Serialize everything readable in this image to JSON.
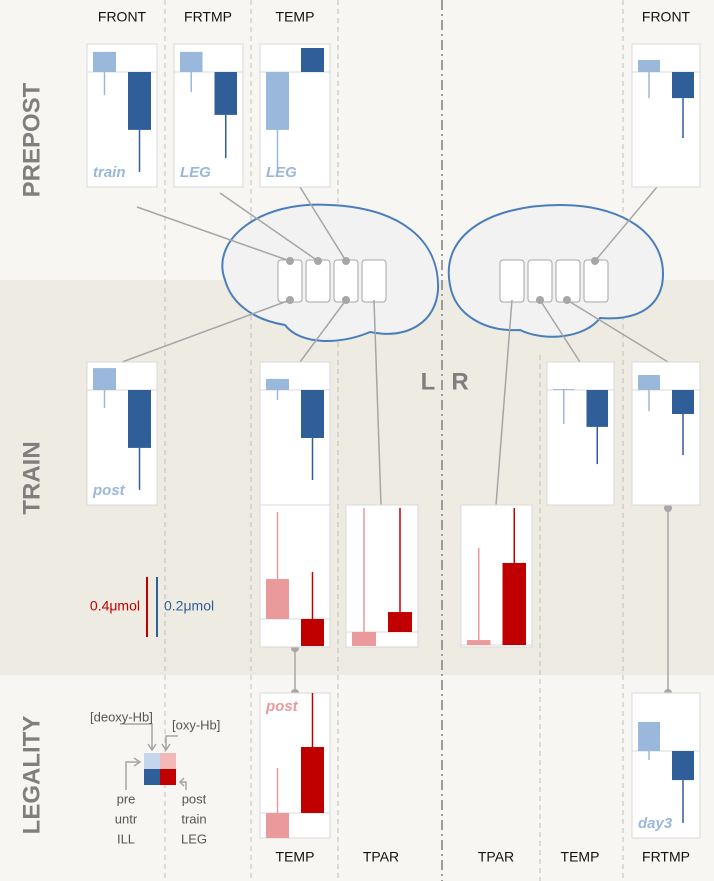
{
  "row_labels": [
    "PREPOST",
    "TRAIN",
    "LEGALITY"
  ],
  "column_headers_top": [
    "FRONT",
    "FRTMP",
    "TEMP",
    "FRONT"
  ],
  "column_headers_bottom": [
    "TEMP",
    "TPAR",
    "TPAR",
    "TEMP",
    "FRTMP"
  ],
  "hemisphere_labels": [
    "L",
    "R"
  ],
  "scale": {
    "red_label": "0.4μmol",
    "red_value": 0.4,
    "blue_label": "0.2μmol",
    "blue_value": 0.2
  },
  "legend": {
    "deoxy": "[deoxy-Hb]",
    "oxy": "[oxy-Hb]",
    "pre": [
      "pre",
      "untr",
      "ILL"
    ],
    "post": [
      "post",
      "train",
      "LEG"
    ]
  },
  "colors": {
    "blue": [
      "#9ab7dc",
      "#2f5e98"
    ],
    "red": [
      "#ea9a9a",
      "#c00000"
    ]
  },
  "panels": [
    {
      "scheme": "blue",
      "label": "train",
      "bars": [
        {
          "value": 0.067,
          "whisker": -0.077
        },
        {
          "value": -0.193,
          "whisker": -0.333
        }
      ]
    },
    {
      "scheme": "blue",
      "label": "LEG",
      "bars": [
        {
          "value": 0.067,
          "whisker": -0.067
        },
        {
          "value": -0.143,
          "whisker": -0.287
        }
      ]
    },
    {
      "scheme": "blue",
      "label": "LEG",
      "bars": [
        {
          "value": -0.193,
          "whisker": -0.333
        },
        {
          "value": 0.08,
          "whisker": 0.08
        }
      ]
    },
    {
      "scheme": "blue",
      "bars": [
        {
          "value": 0.04,
          "whisker": -0.087
        },
        {
          "value": -0.087,
          "whisker": -0.22
        }
      ]
    },
    {
      "scheme": "blue",
      "label": "post",
      "bars": [
        {
          "value": 0.073,
          "whisker": -0.06
        },
        {
          "value": -0.193,
          "whisker": -0.333
        }
      ]
    },
    {
      "scheme": "blue",
      "bars": [
        {
          "value": 0.037,
          "whisker": -0.033
        },
        {
          "value": -0.16,
          "whisker": -0.3
        }
      ]
    },
    {
      "scheme": "blue",
      "bars": [
        {
          "value": 0.003,
          "whisker": -0.113
        },
        {
          "value": -0.123,
          "whisker": -0.247
        }
      ]
    },
    {
      "scheme": "blue",
      "bars": [
        {
          "value": 0.05,
          "whisker": -0.07
        },
        {
          "value": -0.08,
          "whisker": -0.217
        }
      ]
    },
    {
      "scheme": "red",
      "bars": [
        {
          "value": 0.267,
          "whisker": 0.713
        },
        {
          "value": -0.18,
          "whisker": 0.313
        }
      ]
    },
    {
      "scheme": "red",
      "bars": [
        {
          "value": -0.093,
          "whisker": 0.827
        },
        {
          "value": 0.133,
          "whisker": 0.827
        }
      ]
    },
    {
      "scheme": "red",
      "bars": [
        {
          "value": 0.033,
          "whisker": 0.647
        },
        {
          "value": 0.547,
          "whisker": 0.913
        }
      ]
    },
    {
      "scheme": "red",
      "label": "post",
      "bars": [
        {
          "value": -0.167,
          "whisker": 0.3
        },
        {
          "value": 0.44,
          "whisker": 0.8
        }
      ]
    },
    {
      "scheme": "blue",
      "label": "day3",
      "bars": [
        {
          "value": 0.097,
          "whisker": -0.03
        },
        {
          "value": -0.097,
          "whisker": -0.24
        }
      ]
    }
  ]
}
